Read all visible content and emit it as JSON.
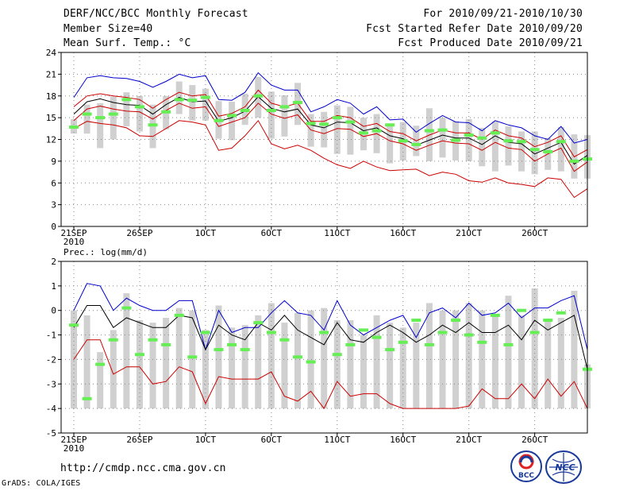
{
  "header": {
    "left": [
      "DERF/NCC/BCC Monthly Forecast",
      "Member Size=40",
      "Mean Surf. Temp.: °C"
    ],
    "right": [
      "For 2010/09/21-2010/10/30",
      "Fcst Started Refer Date 2010/09/20",
      "Fcst Produced Date 2010/09/21"
    ]
  },
  "footer": {
    "url": "http://cmdp.ncc.cma.gov.cn",
    "grads": "GrADS: COLA/IGES",
    "logo_bcc": "BCC",
    "logo_ncc": "NCC"
  },
  "colors": {
    "max": "#0000cc",
    "min": "#cc0000",
    "mean": "#000000",
    "obs": "#66ee55",
    "box": "#d0d0d0",
    "grid": "#888888"
  },
  "chart_data": [
    {
      "type": "line",
      "title": "Mean Surf. Temp.: °C",
      "ylim": [
        0,
        24
      ],
      "yticks": [
        0,
        3,
        6,
        9,
        12,
        15,
        18,
        21,
        24
      ],
      "xtick_labels": [
        "21SEP",
        "26SEP",
        "1OCT",
        "6OCT",
        "11OCT",
        "16OCT",
        "21OCT",
        "26OCT"
      ],
      "xtick_days": [
        0,
        5,
        10,
        15,
        20,
        25,
        30,
        35
      ],
      "year_label": "2010",
      "n_days": 40,
      "series": [
        {
          "name": "max",
          "values": [
            17.8,
            20.5,
            20.8,
            20.5,
            20.4,
            20.0,
            19.2,
            20.0,
            21.0,
            20.5,
            20.8,
            17.5,
            17.4,
            18.5,
            21.2,
            19.5,
            18.8,
            18.8,
            15.8,
            16.5,
            17.5,
            17.0,
            15.5,
            16.5,
            14.7,
            14.8,
            13.0,
            14.2,
            15.3,
            14.4,
            14.3,
            13.2,
            14.6,
            14.0,
            13.6,
            12.5,
            12.0,
            13.8,
            11.5,
            12.0
          ]
        },
        {
          "name": "upper",
          "values": [
            16.5,
            18.0,
            18.3,
            18.0,
            17.8,
            17.5,
            16.3,
            17.5,
            18.5,
            18.0,
            18.2,
            15.2,
            15.6,
            16.5,
            18.8,
            17.0,
            16.5,
            17.0,
            14.5,
            14.5,
            15.3,
            15.0,
            13.8,
            14.2,
            13.1,
            12.8,
            11.8,
            12.6,
            13.3,
            12.9,
            12.9,
            12.0,
            13.3,
            12.5,
            12.2,
            11.0,
            11.6,
            12.5,
            9.6,
            10.6
          ]
        },
        {
          "name": "mean",
          "values": [
            15.5,
            17.2,
            17.6,
            17.1,
            16.8,
            16.7,
            15.5,
            16.8,
            17.8,
            17.2,
            17.3,
            14.5,
            15.0,
            15.9,
            17.9,
            16.3,
            15.8,
            16.2,
            14.0,
            13.6,
            14.4,
            14.3,
            13.2,
            13.6,
            12.5,
            12.1,
            11.2,
            11.9,
            12.6,
            12.2,
            12.2,
            11.3,
            12.5,
            11.6,
            11.4,
            10.0,
            10.8,
            11.6,
            8.6,
            9.8
          ]
        },
        {
          "name": "lower",
          "values": [
            14.6,
            16.2,
            16.6,
            16.2,
            15.9,
            15.8,
            14.8,
            16.0,
            17.0,
            16.3,
            16.5,
            13.8,
            14.4,
            15.0,
            17.0,
            15.5,
            14.9,
            15.4,
            13.3,
            12.8,
            13.5,
            13.4,
            12.4,
            12.8,
            11.8,
            11.4,
            10.5,
            11.2,
            11.8,
            11.5,
            11.4,
            10.5,
            11.6,
            10.8,
            10.6,
            9.0,
            10.0,
            10.8,
            7.6,
            8.9
          ]
        },
        {
          "name": "min",
          "values": [
            13.5,
            14.5,
            14.2,
            14.0,
            13.6,
            12.5,
            12.4,
            13.5,
            14.6,
            14.4,
            14.0,
            10.5,
            10.8,
            12.5,
            14.6,
            11.4,
            10.7,
            11.2,
            10.5,
            9.4,
            8.5,
            8.0,
            9.0,
            8.2,
            7.7,
            7.8,
            7.9,
            7.0,
            7.5,
            7.2,
            6.3,
            6.1,
            6.7,
            6.0,
            5.8,
            5.5,
            6.7,
            6.5,
            4.0,
            5.2
          ]
        }
      ],
      "observed": [
        13.7,
        15.5,
        15.0,
        15.5,
        17.5,
        16.5,
        14.0,
        15.8,
        17.5,
        17.4,
        17.8,
        14.6,
        15.3,
        16.0,
        18.0,
        16.0,
        16.5,
        17.1,
        14.2,
        14.1,
        15.0,
        14.4,
        12.9,
        13.2,
        14.0,
        11.8,
        11.3,
        13.2,
        13.3,
        11.9,
        12.6,
        12.2,
        12.9,
        11.8,
        11.7,
        10.6,
        10.3,
        11.7,
        9.0,
        9.3
      ],
      "box_low": [
        12.8,
        12.8,
        10.8,
        12.0,
        13.8,
        13.1,
        10.8,
        13.4,
        15.5,
        14.6,
        14.6,
        12.1,
        11.9,
        14.0,
        15.0,
        12.1,
        12.4,
        14.0,
        11.0,
        10.9,
        10.0,
        9.9,
        10.5,
        10.1,
        8.7,
        9.1,
        9.7,
        9.0,
        9.5,
        9.1,
        9.0,
        8.3,
        7.6,
        8.4,
        7.6,
        7.2,
        7.8,
        7.6,
        6.6,
        6.6
      ],
      "box_high": [
        14.8,
        16.8,
        17.0,
        17.9,
        18.5,
        18.0,
        16.8,
        18.0,
        20.0,
        19.5,
        19.0,
        17.3,
        17.2,
        18.3,
        20.6,
        18.6,
        18.1,
        19.8,
        15.5,
        15.8,
        16.7,
        16.5,
        15.0,
        15.5,
        14.1,
        14.4,
        13.9,
        16.3,
        15.0,
        14.5,
        14.8,
        13.6,
        14.5,
        13.8,
        13.1,
        13.1,
        12.2,
        13.7,
        12.7,
        12.6
      ]
    },
    {
      "type": "line",
      "title": "Prec.: log(mm/d)",
      "ylim": [
        -5,
        2
      ],
      "yticks": [
        -5,
        -4,
        -3,
        -2,
        -1,
        0,
        1,
        2
      ],
      "xtick_labels": [
        "21SEP",
        "26SEP",
        "1OCT",
        "6OCT",
        "11OCT",
        "16OCT",
        "21OCT",
        "26OCT"
      ],
      "xtick_days": [
        0,
        5,
        10,
        15,
        20,
        25,
        30,
        35
      ],
      "year_label": "2010",
      "n_days": 40,
      "series": [
        {
          "name": "max",
          "values": [
            0.0,
            1.1,
            1.0,
            0.0,
            0.5,
            0.2,
            0.0,
            0.0,
            0.4,
            0.4,
            -1.6,
            0.0,
            -0.9,
            -0.7,
            -0.7,
            -0.1,
            0.4,
            -0.1,
            -0.2,
            -0.8,
            0.4,
            -0.6,
            -1.0,
            -0.7,
            -0.4,
            -0.2,
            -1.1,
            -0.1,
            0.1,
            -0.3,
            0.3,
            -0.2,
            -0.1,
            0.3,
            -0.3,
            0.1,
            0.1,
            0.4,
            0.6,
            -1.6
          ]
        },
        {
          "name": "mean",
          "values": [
            -0.7,
            0.2,
            0.2,
            -0.7,
            -0.3,
            -0.5,
            -0.7,
            -0.7,
            -0.2,
            -0.3,
            -1.6,
            -0.6,
            -1.0,
            -1.2,
            -0.5,
            -0.8,
            -0.2,
            -0.8,
            -1.1,
            -1.4,
            -0.5,
            -1.2,
            -1.3,
            -0.9,
            -0.6,
            -0.9,
            -1.3,
            -1.0,
            -0.6,
            -0.9,
            -0.5,
            -0.9,
            -0.9,
            -0.6,
            -1.2,
            -0.4,
            -0.8,
            -0.5,
            -0.2,
            -2.4
          ]
        },
        {
          "name": "min",
          "values": [
            -2.0,
            -1.2,
            -1.2,
            -2.6,
            -2.3,
            -2.3,
            -3.0,
            -2.9,
            -2.3,
            -2.5,
            -3.8,
            -2.7,
            -2.8,
            -2.8,
            -2.8,
            -2.5,
            -3.5,
            -3.7,
            -3.3,
            -4.0,
            -2.9,
            -3.5,
            -3.4,
            -3.4,
            -3.8,
            -4.0,
            -4.0,
            -4.0,
            -4.0,
            -4.0,
            -3.9,
            -3.2,
            -3.6,
            -3.6,
            -3.0,
            -3.6,
            -2.8,
            -3.5,
            -2.9,
            -4.0
          ]
        }
      ],
      "observed": [
        -0.6,
        -3.6,
        -2.2,
        -1.2,
        0.1,
        -1.8,
        -1.2,
        -1.4,
        -0.2,
        -1.9,
        -0.9,
        -1.6,
        -1.4,
        -1.6,
        -0.5,
        -0.9,
        -1.2,
        -1.9,
        -2.1,
        -0.9,
        -1.8,
        -1.4,
        -0.8,
        -1.1,
        -1.6,
        -1.3,
        -0.4,
        -1.4,
        -0.9,
        -0.4,
        -1.0,
        -1.3,
        -0.2,
        -1.4,
        0.0,
        -0.9,
        -0.4,
        -0.1,
        -2.4
      ],
      "obs_days": [
        0,
        1,
        2,
        3,
        4,
        5,
        6,
        7,
        8,
        9,
        10,
        11,
        12,
        13,
        14,
        15,
        16,
        17,
        18,
        19,
        20,
        21,
        22,
        23,
        24,
        25,
        26,
        27,
        28,
        29,
        30,
        31,
        32,
        33,
        34,
        35,
        36,
        37,
        39
      ],
      "box_low": -4.0,
      "box_high": [
        0.0,
        -0.2,
        -1.7,
        -0.8,
        0.7,
        -0.4,
        -0.5,
        -0.3,
        0.1,
        0.0,
        -0.8,
        0.2,
        -0.7,
        -0.6,
        -0.2,
        0.3,
        -0.5,
        -0.1,
        0.0,
        0.1,
        -0.4,
        -0.4,
        -1.0,
        -0.2,
        -0.5,
        -0.7,
        -0.5,
        0.3,
        0.0,
        0.0,
        0.3,
        0.0,
        -0.2,
        0.6,
        -0.2,
        0.9,
        -0.4,
        -0.3,
        0.8,
        -2.2
      ]
    }
  ]
}
